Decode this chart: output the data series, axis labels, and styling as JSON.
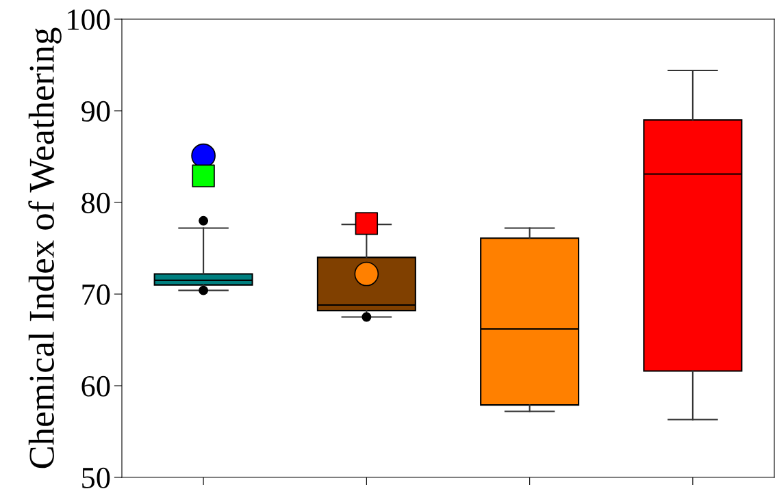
{
  "chart_data": {
    "type": "box",
    "ylabel": "Chemical Index of Weathering",
    "categories": [
      null,
      null,
      null,
      null
    ],
    "colors": [
      "#008080",
      "#804000",
      "#ff8000",
      "#ff0000"
    ],
    "boxes": [
      {
        "low": 70.4,
        "q1": 71.0,
        "median": 71.5,
        "q3": 72.2,
        "high": 77.2,
        "outliers": [
          78.0,
          70.4
        ]
      },
      {
        "low": 67.5,
        "q1": 68.2,
        "median": 68.8,
        "q3": 74.0,
        "high": 77.6,
        "outliers": [
          67.5
        ]
      },
      {
        "low": 57.2,
        "q1": 57.9,
        "median": 66.2,
        "q3": 76.1,
        "high": 77.2
      },
      {
        "low": 56.3,
        "q1": 61.6,
        "median": 83.1,
        "q3": 89.0,
        "high": 94.4
      }
    ],
    "series": [
      {
        "type": "scatter",
        "marker": "circle",
        "color": "#0000ff",
        "values": [
          85.1,
          null,
          null,
          null
        ]
      },
      {
        "type": "scatter",
        "marker": "square",
        "color": "#00ff00",
        "values": [
          82.9,
          null,
          null,
          null
        ]
      },
      {
        "type": "scatter",
        "marker": "square",
        "color": "#ff0000",
        "values": [
          null,
          77.7,
          null,
          null
        ]
      },
      {
        "type": "scatter",
        "marker": "circle",
        "color": "#ff8000",
        "values": [
          null,
          72.2,
          null,
          null
        ]
      }
    ],
    "ylim": [
      50,
      100
    ],
    "yticks": [
      50,
      60,
      70,
      80,
      90,
      100
    ],
    "tick_labels": "y"
  }
}
